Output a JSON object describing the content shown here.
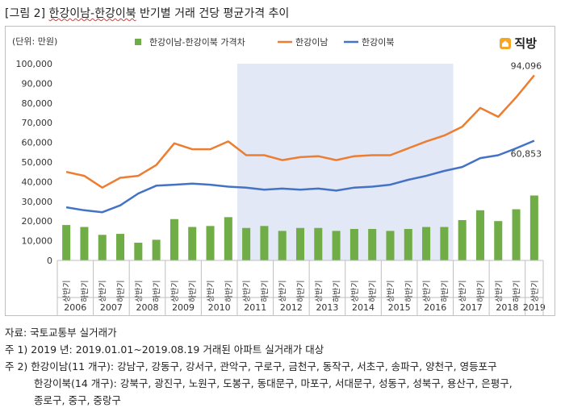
{
  "page_title": {
    "prefix": "[그림 2] ",
    "underlined": "한강이남-한강이북",
    "suffix": " 반기별 거래 건당 평균가격 추이"
  },
  "logo": {
    "text": "직방",
    "icon": "house-icon",
    "accent": "#f5a623"
  },
  "chart_data": {
    "type": "bar+line",
    "unit_label": "(단위: 만원)",
    "ylim": [
      0,
      100000
    ],
    "yticks": [
      0,
      10000,
      20000,
      30000,
      40000,
      50000,
      60000,
      70000,
      80000,
      90000,
      100000
    ],
    "ytick_labels": [
      "0",
      "10,000",
      "20,000",
      "30,000",
      "40,000",
      "50,000",
      "60,000",
      "70,000",
      "80,000",
      "90,000",
      "100,000"
    ],
    "categories": [
      "상반기",
      "하반기",
      "상반기",
      "하반기",
      "상반기",
      "하반기",
      "상반기",
      "하반기",
      "상반기",
      "하반기",
      "상반기",
      "하반기",
      "상반기",
      "하반기",
      "상반기",
      "하반기",
      "상반기",
      "하반기",
      "상반기",
      "하반기",
      "상반기",
      "하반기",
      "상반기",
      "하반기",
      "상반기",
      "하반기",
      "상반기"
    ],
    "years": [
      "2006",
      "2007",
      "2008",
      "2009",
      "2010",
      "2011",
      "2012",
      "2013",
      "2014",
      "2015",
      "2016",
      "2017",
      "2018",
      "2019"
    ],
    "year_spans": [
      2,
      2,
      2,
      2,
      2,
      2,
      2,
      2,
      2,
      2,
      2,
      2,
      2,
      1
    ],
    "highlight_range": {
      "from_index": 10,
      "to_index": 21
    },
    "series": [
      {
        "name": "한강이남-한강이북 가격차",
        "type": "bar",
        "color": "#70ad47",
        "values": [
          18000,
          17000,
          13000,
          13500,
          9000,
          10500,
          21000,
          17000,
          17500,
          22000,
          16500,
          17500,
          15000,
          16500,
          16500,
          15000,
          16000,
          16000,
          15000,
          16000,
          17000,
          17000,
          20500,
          25500,
          20000,
          26000,
          33000
        ]
      },
      {
        "name": "한강이남",
        "type": "line",
        "color": "#ed7d31",
        "values": [
          45000,
          43000,
          37000,
          42000,
          43000,
          48500,
          59500,
          56500,
          56500,
          60500,
          53500,
          53500,
          51000,
          52500,
          53000,
          51000,
          53000,
          53500,
          53500,
          57000,
          60500,
          63500,
          68000,
          77500,
          73000,
          83000,
          94096
        ]
      },
      {
        "name": "한강이북",
        "type": "line",
        "color": "#4472c4",
        "values": [
          27000,
          25500,
          24500,
          28000,
          34000,
          38000,
          38500,
          39000,
          38500,
          37500,
          37000,
          36000,
          36500,
          36000,
          36500,
          35500,
          37000,
          37500,
          38500,
          41000,
          43000,
          45500,
          47500,
          52000,
          53500,
          57000,
          60853
        ]
      }
    ],
    "annotations": [
      {
        "series": "한강이남",
        "index": 26,
        "text": "94,096"
      },
      {
        "series": "한강이북",
        "index": 26,
        "text": "60,853"
      }
    ],
    "legend_position": "top"
  },
  "notes": [
    "자료: 국토교통부 실거래가",
    "주 1) 2019 년: 2019.01.01~2019.08.19 거래된 아파트 실거래가 대상",
    "주 2) 한강이남(11 개구): 강남구, 강동구, 강서구, 관악구, 구로구, 금천구, 동작구, 서초구, 송파구, 양천구, 영등포구",
    "한강이북(14 개구): 강북구, 광진구, 노원구, 도봉구, 동대문구, 마포구, 서대문구, 성동구, 성북구, 용산구, 은평구,",
    "종로구, 중구, 중랑구"
  ]
}
